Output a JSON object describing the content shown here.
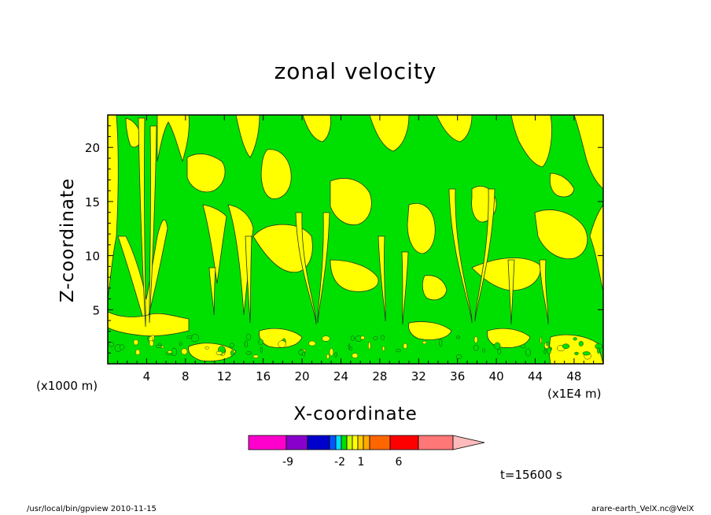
{
  "chart_data": {
    "type": "heatmap",
    "title": "zonal velocity",
    "xlabel": "X-coordinate",
    "ylabel": "Z-coordinate",
    "x_unit": "(x1000 m)",
    "x_multiplier": "(x1E4 m)",
    "xlim": [
      0,
      51
    ],
    "ylim": [
      0,
      23
    ],
    "x_ticks": [
      4,
      8,
      12,
      16,
      20,
      24,
      28,
      32,
      36,
      40,
      44,
      48
    ],
    "y_ticks": [
      5,
      10,
      15,
      20
    ],
    "colors": {
      "green": "#00e000",
      "yellow": "#ffff00",
      "contour": "#1e3a1e"
    },
    "colorbar": {
      "colors": [
        "#ff00cc",
        "#8800cc",
        "#0000cc",
        "#0055ff",
        "#00ddff",
        "#00e000",
        "#ccff00",
        "#ffff00",
        "#ffcc00",
        "#ffaa00",
        "#ff6600",
        "#ff0000",
        "#ff7777",
        "#ffbbbb"
      ],
      "labels": [
        "-9",
        "-2",
        "1",
        "6"
      ]
    },
    "time_label": "t=15600 s"
  },
  "footer": {
    "left": "/usr/local/bin/gpview  2010-11-15",
    "right": "arare-earth_VelX.nc@VelX"
  }
}
